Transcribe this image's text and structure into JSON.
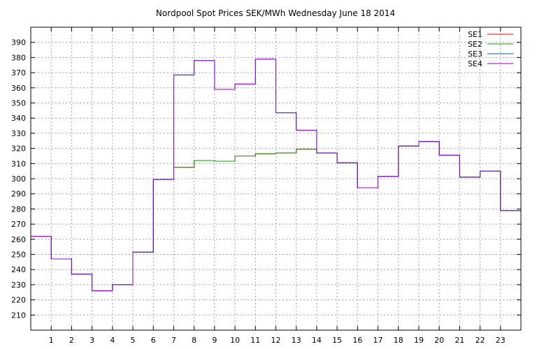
{
  "chart_data": {
    "type": "line",
    "step": true,
    "title": "Nordpool Spot Prices SEK/MWh Wednesday June 18 2014",
    "xlabel": "",
    "ylabel": "",
    "xlim": [
      0,
      23
    ],
    "ylim": [
      200,
      400
    ],
    "x_ticks": [
      1,
      2,
      3,
      4,
      5,
      6,
      7,
      8,
      9,
      10,
      11,
      12,
      13,
      14,
      15,
      16,
      17,
      18,
      19,
      20,
      21,
      22,
      23
    ],
    "y_ticks": [
      210,
      220,
      230,
      240,
      250,
      260,
      270,
      280,
      290,
      300,
      310,
      320,
      330,
      340,
      350,
      360,
      370,
      380,
      390
    ],
    "grid": true,
    "legend": "top-right",
    "x": [
      0,
      1,
      2,
      3,
      4,
      5,
      6,
      7,
      8,
      9,
      10,
      11,
      12,
      13,
      14,
      15,
      16,
      17,
      18,
      19,
      20,
      21,
      22,
      23
    ],
    "series": [
      {
        "name": "SE1",
        "color": "#ff0000",
        "values": [
          262,
          247,
          237,
          226,
          230,
          251.5,
          299.5,
          307.5,
          312,
          311.5,
          315,
          316.5,
          317,
          319.5,
          317,
          310.5,
          294,
          301.5,
          321.5,
          324.5,
          315.5,
          301,
          305,
          279
        ]
      },
      {
        "name": "SE2",
        "color": "#00a000",
        "values": [
          262,
          247,
          237,
          226,
          230,
          251.5,
          299.5,
          307.5,
          312,
          311.5,
          315,
          316.5,
          317,
          319.5,
          317,
          310.5,
          294,
          301.5,
          321.5,
          324.5,
          315.5,
          301,
          305,
          279
        ]
      },
      {
        "name": "SE3",
        "color": "#0060ad",
        "values": [
          262,
          247,
          237,
          226,
          230,
          251.5,
          299.5,
          368.5,
          378,
          359,
          362.5,
          379,
          343.5,
          332,
          317,
          310.5,
          294,
          301.5,
          321.5,
          324.5,
          315.5,
          301,
          305,
          279
        ]
      },
      {
        "name": "SE4",
        "color": "#9400d3",
        "values": [
          262,
          247,
          237,
          226,
          230,
          251.5,
          299.5,
          368.5,
          378,
          359,
          362.5,
          379,
          343.5,
          332,
          317,
          310.5,
          294,
          301.5,
          321.5,
          324.5,
          315.5,
          301,
          305,
          279
        ]
      }
    ]
  }
}
